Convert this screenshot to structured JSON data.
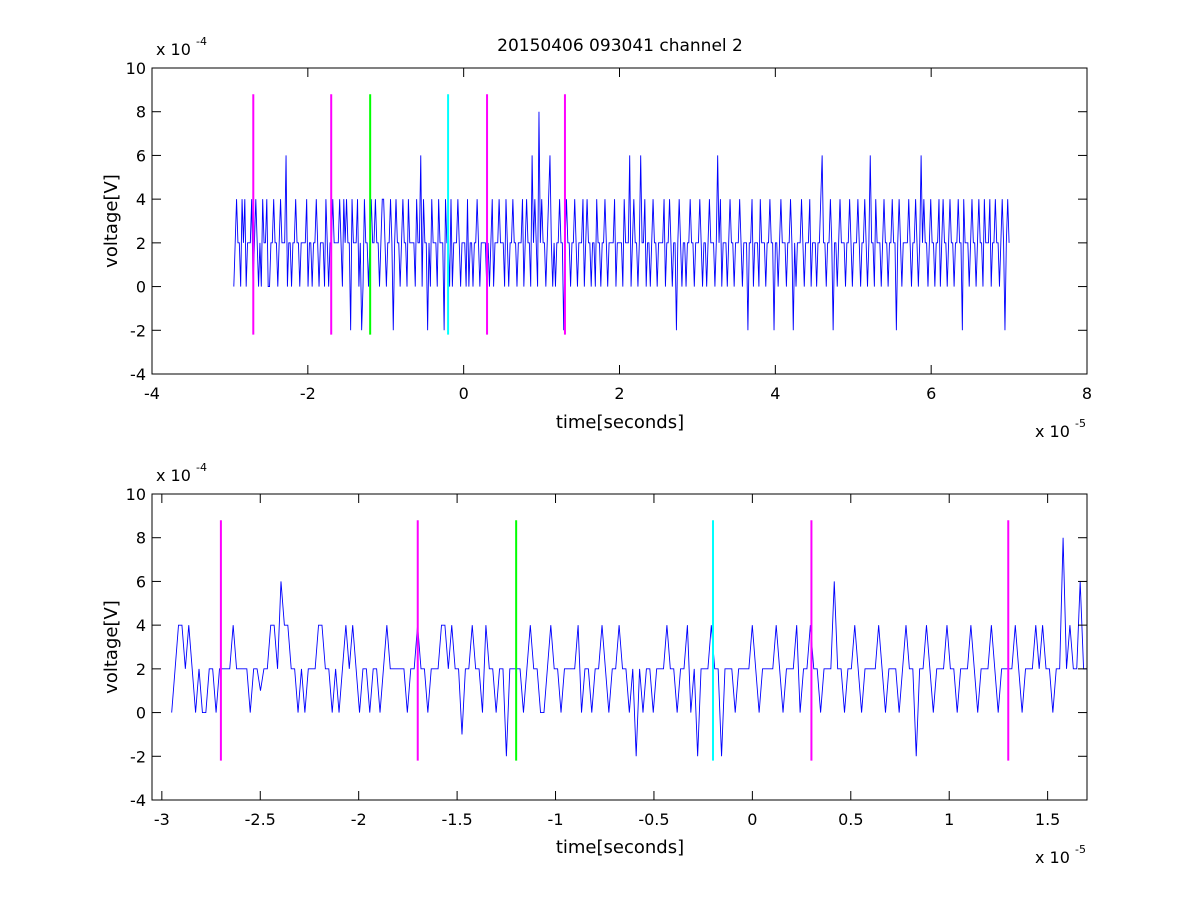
{
  "chart_data": [
    {
      "type": "line",
      "title": "20150406 093041 channel 2",
      "xlabel": "time[seconds]",
      "ylabel": "voltage[V]",
      "x_multiplier_label": "x 10",
      "x_multiplier_exp": "-5",
      "y_multiplier_label": "x 10",
      "y_multiplier_exp": "-4",
      "xlim": [
        -4,
        8
      ],
      "ylim": [
        -4,
        10
      ],
      "x_ticks": [
        -4,
        -2,
        0,
        2,
        4,
        6,
        8
      ],
      "x_tick_labels": [
        "-4",
        "-2",
        "0",
        "2",
        "4",
        "6",
        "8"
      ],
      "y_ticks": [
        -4,
        -2,
        0,
        2,
        4,
        6,
        8,
        10
      ],
      "y_tick_labels": [
        "-4",
        "-2",
        "0",
        "2",
        "4",
        "6",
        "8",
        "10"
      ],
      "grid": false,
      "series": [
        {
          "color": "#0000ff",
          "x_range": [
            -2.95,
            7.0
          ],
          "y_values": [
            0,
            2,
            4,
            2,
            2,
            0,
            4,
            2,
            4,
            0,
            2,
            2,
            2,
            4,
            0,
            2,
            4,
            2,
            0,
            2,
            0,
            4,
            2,
            2,
            4,
            0,
            0,
            2,
            2,
            4,
            2,
            2,
            0,
            2,
            4,
            2,
            2,
            2,
            6,
            0,
            2,
            2,
            0,
            2,
            2,
            4,
            2,
            2,
            0,
            2,
            2,
            2,
            2,
            4,
            0,
            2,
            2,
            0,
            2,
            2,
            4,
            2,
            0,
            2,
            2,
            2,
            0,
            4,
            2,
            0,
            2,
            2,
            4,
            2,
            2,
            2,
            2,
            4,
            2,
            0,
            4,
            2,
            4,
            2,
            2,
            -2,
            4,
            2,
            2,
            2,
            4,
            0,
            2,
            -2,
            0,
            4,
            2,
            2,
            0,
            2,
            4,
            2,
            2,
            4,
            2,
            2,
            0,
            2,
            4,
            4,
            2,
            0,
            2,
            2,
            4,
            2,
            -2,
            2,
            4,
            2,
            2,
            0,
            2,
            4,
            2,
            2,
            0,
            4,
            2,
            2,
            2,
            2,
            0,
            4,
            2,
            2,
            6,
            0,
            4,
            2,
            2,
            -2,
            2,
            0,
            4,
            2,
            2,
            2,
            0,
            4,
            2,
            2,
            2,
            -2,
            4,
            2,
            2,
            0,
            4,
            0,
            2,
            2,
            2,
            4,
            2,
            0,
            2,
            2,
            2,
            0,
            4,
            0,
            2,
            2,
            0,
            2,
            2,
            4,
            2,
            0,
            2,
            2,
            2,
            2,
            0,
            2,
            0,
            2,
            4,
            0,
            2,
            2,
            2,
            4,
            2,
            2,
            2,
            0,
            4,
            2,
            0,
            2,
            2,
            4,
            2,
            2,
            0,
            2,
            2,
            2,
            4,
            0,
            2,
            4,
            2,
            2,
            0,
            6,
            2,
            4,
            2,
            0,
            8,
            2,
            4,
            2,
            2,
            0,
            2,
            4,
            6,
            2,
            0,
            2,
            0,
            2,
            2,
            4,
            2,
            2,
            -2,
            2,
            4,
            2,
            2,
            0,
            2,
            2,
            4,
            2,
            0,
            2,
            2,
            2,
            4,
            0,
            2,
            4,
            2,
            2,
            0,
            2,
            2,
            0,
            4,
            2,
            2,
            0,
            2,
            2,
            4,
            2,
            0,
            2,
            2,
            2,
            2,
            4,
            0,
            2,
            2,
            2,
            2,
            0,
            4,
            2,
            2,
            2,
            6,
            0,
            2,
            4,
            2,
            2,
            0,
            2,
            6,
            2,
            2,
            4,
            0,
            2,
            2,
            0,
            2,
            4,
            2,
            2,
            0,
            2,
            2,
            2,
            2,
            4,
            0,
            2,
            2,
            4,
            2,
            0,
            2,
            2,
            -2,
            2,
            4,
            2,
            0,
            2,
            2,
            0,
            2,
            2,
            4,
            2,
            2,
            0,
            2,
            2,
            2,
            4,
            2,
            0,
            2,
            2,
            0,
            2,
            4,
            2,
            2,
            2,
            0,
            2,
            6,
            2,
            4,
            0,
            2,
            2,
            2,
            0,
            2,
            4,
            2,
            2,
            0,
            2,
            2,
            2,
            4,
            2,
            0,
            2,
            2,
            2,
            -2,
            2,
            2,
            4,
            0,
            2,
            2,
            2,
            0,
            4,
            2,
            2,
            2,
            0,
            2,
            2,
            4,
            2,
            2,
            -2,
            2,
            2,
            0,
            2,
            4,
            2,
            2,
            2,
            0,
            2,
            2,
            4,
            2,
            -2,
            2,
            0,
            2,
            2,
            2,
            4,
            2,
            0,
            2,
            2,
            2,
            4,
            0,
            2,
            2,
            2,
            0,
            2,
            2,
            4,
            6,
            2,
            2,
            0,
            2,
            2,
            4,
            2,
            -2,
            2,
            2,
            0,
            2,
            4,
            2,
            2,
            2,
            0,
            2,
            2,
            4,
            2,
            0,
            2,
            2,
            2,
            4,
            2,
            0,
            2,
            2,
            4,
            2,
            0,
            2,
            6,
            2,
            2,
            0,
            4,
            2,
            2,
            2,
            0,
            2,
            4,
            2,
            2,
            0,
            2,
            2,
            4,
            2,
            2,
            -2,
            2,
            4,
            2,
            0,
            2,
            2,
            2,
            2,
            4,
            2,
            0,
            2,
            2,
            4,
            2,
            0,
            2,
            6,
            2,
            4,
            2,
            2,
            0,
            2,
            4,
            2,
            2,
            0,
            2,
            2,
            4,
            0,
            2,
            4,
            2,
            2,
            0,
            2,
            4,
            2,
            2,
            0,
            2,
            2,
            4,
            2,
            2,
            -2,
            4,
            2,
            2,
            2,
            0,
            2,
            4,
            2,
            2,
            0,
            2,
            4,
            2,
            2,
            0,
            4,
            2,
            2,
            2,
            4,
            0,
            2,
            2,
            4,
            2,
            2,
            0,
            2,
            4,
            2,
            -2,
            2,
            4,
            2
          ]
        }
      ],
      "markers": {
        "y_range": [
          -2.2,
          8.8
        ],
        "lines": [
          {
            "x": -2.7,
            "color": "#ff00ff"
          },
          {
            "x": -1.7,
            "color": "#ff00ff"
          },
          {
            "x": -1.2,
            "color": "#00ff00"
          },
          {
            "x": -0.2,
            "color": "#00ffff"
          },
          {
            "x": 0.3,
            "color": "#ff00ff"
          },
          {
            "x": 1.3,
            "color": "#ff00ff"
          }
        ]
      }
    },
    {
      "type": "line",
      "title": "",
      "xlabel": "time[seconds]",
      "ylabel": "voltage[V]",
      "x_multiplier_label": "x 10",
      "x_multiplier_exp": "-5",
      "y_multiplier_label": "x 10",
      "y_multiplier_exp": "-4",
      "xlim": [
        -3.05,
        1.7
      ],
      "ylim": [
        -4,
        10
      ],
      "x_ticks": [
        -3,
        -2.5,
        -2,
        -1.5,
        -1,
        -0.5,
        0,
        0.5,
        1,
        1.5
      ],
      "x_tick_labels": [
        "-3",
        "-2.5",
        "-2",
        "-1.5",
        "-1",
        "-0.5",
        "0",
        "0.5",
        "1",
        "1.5"
      ],
      "y_ticks": [
        -4,
        -2,
        0,
        2,
        4,
        6,
        8,
        10
      ],
      "y_tick_labels": [
        "-4",
        "-2",
        "0",
        "2",
        "4",
        "6",
        "8",
        "10"
      ],
      "grid": false,
      "series": [
        {
          "color": "#0000ff",
          "x_range": [
            -2.95,
            1.7
          ],
          "y_values": [
            0,
            2,
            4,
            4,
            2,
            4,
            2,
            0,
            2,
            0,
            0,
            2,
            2,
            0,
            2,
            2,
            2,
            2,
            4,
            2,
            2,
            2,
            2,
            0,
            2,
            2,
            1,
            2,
            2,
            4,
            4,
            2,
            6,
            4,
            4,
            2,
            2,
            0,
            2,
            0,
            2,
            2,
            2,
            4,
            4,
            2,
            2,
            0,
            2,
            0,
            2,
            4,
            2,
            4,
            2,
            0,
            2,
            2,
            0,
            2,
            2,
            0,
            2,
            4,
            2,
            2,
            2,
            2,
            2,
            0,
            2,
            2,
            4,
            2,
            2,
            0,
            2,
            2,
            2,
            4,
            4,
            2,
            4,
            2,
            2,
            -1,
            2,
            2,
            4,
            2,
            2,
            0,
            4,
            2,
            2,
            0,
            2,
            2,
            -2,
            2,
            2,
            2,
            2,
            0,
            2,
            4,
            2,
            2,
            0,
            0,
            2,
            4,
            2,
            2,
            0,
            2,
            2,
            2,
            2,
            4,
            0,
            2,
            2,
            0,
            2,
            2,
            4,
            2,
            0,
            2,
            2,
            4,
            2,
            2,
            0,
            2,
            -2,
            2,
            0,
            2,
            2,
            0,
            2,
            2,
            2,
            4,
            2,
            2,
            0,
            2,
            2,
            4,
            0,
            2,
            -2,
            2,
            2,
            2,
            4,
            2,
            2,
            -2,
            2,
            2,
            2,
            0,
            2,
            2,
            2,
            2,
            4,
            2,
            0,
            2,
            2,
            2,
            2,
            4,
            2,
            0,
            2,
            2,
            2,
            4,
            0,
            2,
            2,
            4,
            2,
            2,
            0,
            2,
            2,
            2,
            6,
            2,
            2,
            0,
            2,
            2,
            4,
            2,
            0,
            2,
            2,
            2,
            2,
            4,
            2,
            0,
            2,
            2,
            2,
            0,
            2,
            4,
            2,
            2,
            -2,
            2,
            2,
            4,
            2,
            0,
            2,
            2,
            2,
            4,
            2,
            2,
            0,
            2,
            2,
            2,
            4,
            2,
            0,
            2,
            2,
            2,
            4,
            2,
            0,
            2,
            2,
            2,
            2,
            4,
            2,
            0,
            2,
            2,
            2,
            4,
            2,
            4,
            2,
            2,
            0,
            2,
            2,
            8,
            2,
            4,
            2,
            2,
            6,
            2,
            2
          ],
          "note_points": []
        }
      ],
      "markers": {
        "y_range": [
          -2.2,
          8.8
        ],
        "lines": [
          {
            "x": -2.7,
            "color": "#ff00ff"
          },
          {
            "x": -1.7,
            "color": "#ff00ff"
          },
          {
            "x": -1.2,
            "color": "#00ff00"
          },
          {
            "x": -0.2,
            "color": "#00ffff"
          },
          {
            "x": 0.3,
            "color": "#ff00ff"
          },
          {
            "x": 1.3,
            "color": "#ff00ff"
          }
        ]
      }
    }
  ]
}
